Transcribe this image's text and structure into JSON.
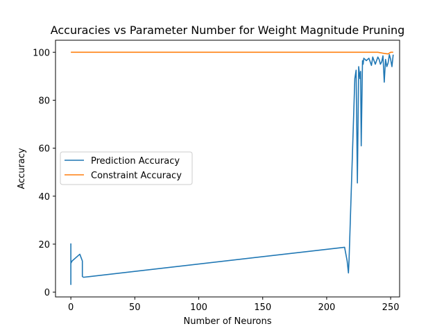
{
  "chart_data": {
    "type": "line",
    "title": "Accuracies vs Parameter Number for Weight Magnitude Pruning",
    "xlabel": "Number of Neurons",
    "ylabel": "Accuracy",
    "xlim": [
      -12,
      257
    ],
    "ylim": [
      -2,
      105
    ],
    "xticks": [
      0,
      50,
      100,
      150,
      200,
      250
    ],
    "yticks": [
      0,
      20,
      40,
      60,
      80,
      100
    ],
    "grid": false,
    "legend_position": "center-left",
    "series": [
      {
        "name": "Prediction Accuracy",
        "color": "#1f77b4",
        "x": [
          0,
          0,
          0,
          0,
          1,
          7,
          9,
          9,
          10,
          214,
          216,
          217,
          217.5,
          222,
          223,
          224,
          225,
          226,
          226.5,
          227,
          228,
          228.5,
          229,
          231,
          232,
          233,
          234,
          235,
          236,
          237,
          238,
          239,
          240,
          241,
          242,
          243,
          244,
          245,
          246,
          247,
          248,
          249,
          250,
          251,
          252
        ],
        "y": [
          20.3,
          3.2,
          8.4,
          12,
          13,
          15.8,
          13,
          6.5,
          6.2,
          18.7,
          13,
          8,
          13.5,
          89,
          92.5,
          45.5,
          94,
          89,
          92,
          61,
          96.5,
          95,
          97.5,
          96.5,
          97,
          97.5,
          96,
          94.5,
          98,
          96.5,
          95,
          96.5,
          98,
          97,
          95,
          96,
          98.5,
          87.5,
          97,
          94,
          95.5,
          99,
          97,
          94,
          99
        ]
      },
      {
        "name": "Constraint Accuracy",
        "color": "#ff7f0e",
        "x": [
          0,
          235,
          240,
          245,
          248,
          250,
          252
        ],
        "y": [
          100,
          100,
          100,
          99.5,
          99.3,
          100,
          100
        ]
      }
    ]
  }
}
